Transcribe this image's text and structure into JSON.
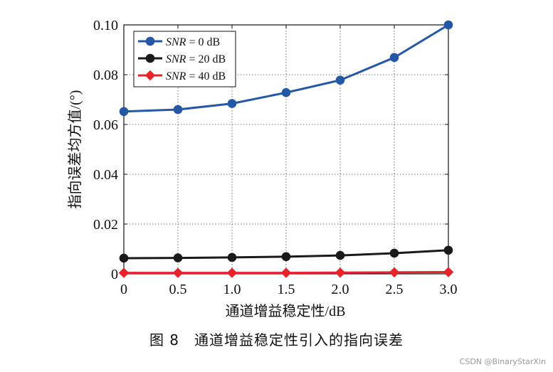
{
  "chart_data": {
    "type": "line",
    "x": [
      0,
      0.5,
      1.0,
      1.5,
      2.0,
      2.5,
      3.0
    ],
    "xticks": [
      "0",
      "0.5",
      "1.0",
      "1.5",
      "2.0",
      "2.5",
      "3.0"
    ],
    "yticks": [
      "0",
      "0.02",
      "0.04",
      "0.06",
      "0.08",
      "0.10"
    ],
    "xlim": [
      0,
      3.0
    ],
    "ylim": [
      0,
      0.1
    ],
    "xlabel": "通道增益稳定性/dB",
    "ylabel": "指向误差均方值/(°)",
    "grid": true,
    "legend_position": "top-left",
    "series": [
      {
        "name_main": "SNR",
        "name_rest": " = 0 dB",
        "color": "#2557a7",
        "marker": "circle",
        "values": [
          0.0652,
          0.066,
          0.0684,
          0.0728,
          0.0778,
          0.0869,
          0.1
        ]
      },
      {
        "name_main": "SNR",
        "name_rest": " = 20 dB",
        "color": "#1a1a1a",
        "marker": "circle",
        "values": [
          0.0063,
          0.0064,
          0.0066,
          0.0069,
          0.0074,
          0.0083,
          0.0095
        ]
      },
      {
        "name_main": "SNR",
        "name_rest": " = 40 dB",
        "color": "#e8232a",
        "marker": "diamond",
        "values": [
          0.0004,
          0.0004,
          0.0004,
          0.0004,
          0.0005,
          0.0006,
          0.0007
        ]
      }
    ]
  },
  "caption": "图 8　通道增益稳定性引入的指向误差",
  "watermark": "CSDN @BinaryStarXin"
}
